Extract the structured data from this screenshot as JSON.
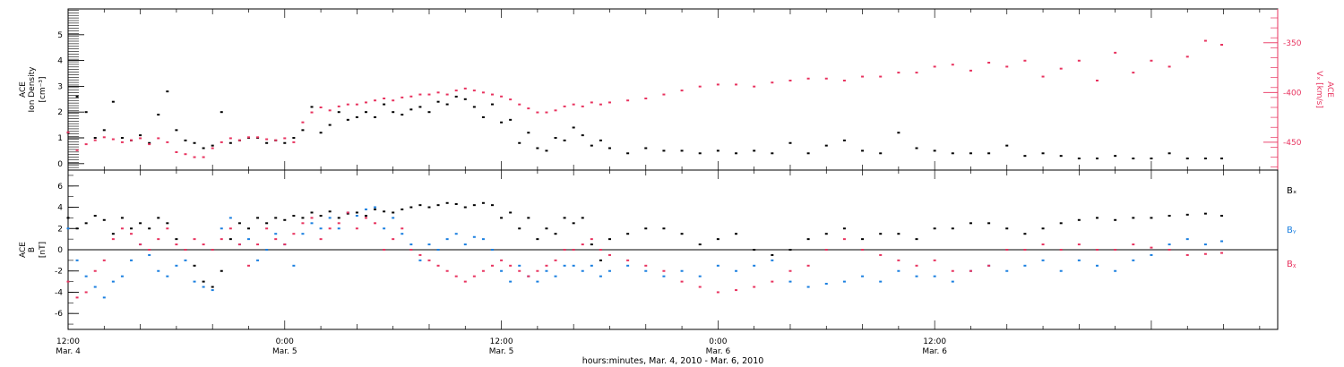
{
  "x_axis": {
    "ticks": [
      {
        "time": "12:00",
        "date": "Mar. 4"
      },
      {
        "time": "0:00",
        "date": "Mar. 5"
      },
      {
        "time": "12:00",
        "date": "Mar. 5"
      },
      {
        "time": "0:00",
        "date": "Mar. 6"
      },
      {
        "time": "12:00",
        "date": "Mar. 6"
      }
    ],
    "title": "hours:minutes, Mar.  4, 2010 - Mar.  6, 2010"
  },
  "colors": {
    "density": "#000000",
    "velocity": "#e8335f",
    "bx": "#000000",
    "by": "#1a7fe0",
    "bz": "#e8335f",
    "axes": "#000000"
  },
  "chart_data": [
    {
      "type": "scatter",
      "panel": "top",
      "x_unit": "hours since Mar. 4 12:00",
      "xlim": [
        0,
        67
      ],
      "left_axis": {
        "label_lines": [
          "ACE",
          "Ion Density"
        ],
        "unit": "[cm⁻³]",
        "ylim": [
          -0.25,
          6.0
        ],
        "ticks": [
          0,
          1,
          2,
          3,
          4,
          5
        ]
      },
      "right_axis": {
        "label_lines": [
          "ACE"
        ],
        "unit": "Vₓ [km/s]",
        "ylim": [
          -478,
          -316
        ],
        "ticks": [
          -350,
          -400,
          -450
        ]
      },
      "series": [
        {
          "name": "",
          "axis": "left",
          "color_key": "density",
          "x": [
            0,
            0.5,
            1,
            1.5,
            2,
            2.5,
            3,
            3.5,
            4,
            4.5,
            5,
            5.5,
            6,
            6.5,
            7,
            7.5,
            8,
            8.5,
            9,
            9.5,
            10,
            10.5,
            11,
            11.5,
            12,
            12.5,
            13,
            13.5,
            14,
            14.5,
            15,
            15.5,
            16,
            16.5,
            17,
            17.5,
            18,
            18.5,
            19,
            19.5,
            20,
            20.5,
            21,
            21.5,
            22,
            22.5,
            23,
            23.5,
            24,
            24.5,
            25,
            25.5,
            26,
            26.5,
            27,
            27.5,
            28,
            28.5,
            29,
            29.5,
            30,
            31,
            32,
            33,
            34,
            35,
            36,
            37,
            38,
            39,
            40,
            41,
            42,
            43,
            44,
            45,
            46,
            47,
            48,
            49,
            50,
            51,
            52,
            53,
            54,
            55,
            56,
            57,
            58,
            59,
            60,
            61,
            62,
            63,
            63.9
          ],
          "y": [
            1.2,
            2.6,
            2.0,
            1.0,
            1.3,
            2.4,
            1.0,
            0.9,
            1.1,
            0.8,
            1.9,
            2.8,
            1.3,
            0.9,
            0.8,
            0.6,
            0.7,
            2.0,
            0.8,
            0.9,
            1.0,
            1.0,
            0.8,
            0.9,
            0.8,
            1.0,
            1.3,
            2.2,
            1.2,
            1.5,
            2.0,
            1.7,
            1.8,
            2.0,
            1.8,
            2.3,
            2.0,
            1.9,
            2.1,
            2.2,
            2.0,
            2.4,
            2.3,
            2.6,
            2.5,
            2.2,
            1.8,
            2.3,
            1.6,
            1.7,
            0.8,
            1.2,
            0.6,
            0.5,
            1.0,
            0.9,
            1.4,
            1.1,
            0.7,
            0.9,
            0.6,
            0.4,
            0.6,
            0.5,
            0.5,
            0.4,
            0.5,
            0.4,
            0.5,
            0.4,
            0.8,
            0.4,
            0.7,
            0.9,
            0.5,
            0.4,
            1.2,
            0.6,
            0.5,
            0.4,
            0.4,
            0.4,
            0.7,
            0.3,
            0.4,
            0.3,
            0.2,
            0.2,
            0.3,
            0.2,
            0.2,
            0.4,
            0.2,
            0.2,
            0.2
          ]
        },
        {
          "name": "",
          "axis": "right",
          "color_key": "velocity",
          "x": [
            0,
            0.5,
            1,
            1.5,
            2,
            2.5,
            3,
            3.5,
            4,
            4.5,
            5,
            5.5,
            6,
            6.5,
            7,
            7.5,
            8,
            8.5,
            9,
            9.5,
            10,
            10.5,
            11,
            11.5,
            12,
            12.5,
            13,
            13.5,
            14,
            14.5,
            15,
            15.5,
            16,
            16.5,
            17,
            17.5,
            18,
            18.5,
            19,
            19.5,
            20,
            20.5,
            21,
            21.5,
            22,
            22.5,
            23,
            23.5,
            24,
            24.5,
            25,
            25.5,
            26,
            26.5,
            27,
            27.5,
            28,
            28.5,
            29,
            29.5,
            30,
            31,
            32,
            33,
            34,
            35,
            36,
            37,
            38,
            39,
            40,
            41,
            42,
            43,
            44,
            45,
            46,
            47,
            48,
            49,
            50,
            51,
            52,
            53,
            54,
            55,
            56,
            57,
            58,
            59,
            60,
            61,
            62,
            63,
            63.9
          ],
          "y": [
            -440,
            -458,
            -452,
            -448,
            -445,
            -447,
            -450,
            -448,
            -446,
            -452,
            -446,
            -450,
            -460,
            -462,
            -465,
            -465,
            -456,
            -450,
            -446,
            -448,
            -445,
            -445,
            -447,
            -448,
            -446,
            -450,
            -430,
            -420,
            -415,
            -418,
            -414,
            -412,
            -412,
            -410,
            -408,
            -406,
            -408,
            -405,
            -404,
            -402,
            -402,
            -400,
            -402,
            -398,
            -396,
            -398,
            -400,
            -402,
            -404,
            -407,
            -412,
            -416,
            -420,
            -420,
            -418,
            -414,
            -412,
            -414,
            -410,
            -412,
            -410,
            -408,
            -406,
            -402,
            -398,
            -394,
            -392,
            -392,
            -394,
            -390,
            -388,
            -386,
            -386,
            -388,
            -384,
            -384,
            -380,
            -380,
            -374,
            -372,
            -378,
            -370,
            -374,
            -368,
            -384,
            -376,
            -368,
            -388,
            -360,
            -380,
            -368,
            -374,
            -364,
            -348,
            -352
          ]
        }
      ]
    },
    {
      "type": "scatter",
      "panel": "bottom",
      "x_unit": "hours since Mar. 4 12:00",
      "xlim": [
        0,
        67
      ],
      "left_axis": {
        "label_lines": [
          "ACE",
          "B"
        ],
        "unit": "[nT]",
        "ylim": [
          -7.5,
          7.5
        ],
        "ticks": [
          -6,
          -4,
          -2,
          0,
          2,
          4,
          6
        ]
      },
      "legend": [
        "Bₓ",
        "Bᵧ",
        "Bᵪ"
      ],
      "series": [
        {
          "name": "Bₓ",
          "color_key": "bx",
          "x": [
            0,
            0.5,
            1,
            1.5,
            2,
            2.5,
            3,
            3.5,
            4,
            4.5,
            5,
            5.5,
            6,
            6.5,
            7,
            7.5,
            8,
            8.5,
            9,
            9.5,
            10,
            10.5,
            11,
            11.5,
            12,
            12.5,
            13,
            13.5,
            14,
            14.5,
            15,
            15.5,
            16,
            16.5,
            17,
            17.5,
            18,
            18.5,
            19,
            19.5,
            20,
            20.5,
            21,
            21.5,
            22,
            22.5,
            23,
            23.5,
            24,
            24.5,
            25,
            25.5,
            26,
            26.5,
            27,
            27.5,
            28,
            28.5,
            29,
            29.5,
            30,
            31,
            32,
            33,
            34,
            35,
            36,
            37,
            38,
            39,
            40,
            41,
            42,
            43,
            44,
            45,
            46,
            47,
            48,
            49,
            50,
            51,
            52,
            53,
            54,
            55,
            56,
            57,
            58,
            59,
            60,
            61,
            62,
            63,
            63.9
          ],
          "y": [
            3.0,
            2.0,
            2.5,
            3.2,
            2.8,
            1.5,
            3.0,
            2.0,
            2.5,
            2.0,
            3.0,
            2.5,
            1.0,
            0.0,
            -1.5,
            -3.0,
            -3.5,
            -2.0,
            1.0,
            2.5,
            2.0,
            3.0,
            2.5,
            3.0,
            2.8,
            3.2,
            3.0,
            3.5,
            3.2,
            3.6,
            3.0,
            3.4,
            3.5,
            3.2,
            3.8,
            3.6,
            3.5,
            3.8,
            4.0,
            4.2,
            4.0,
            4.2,
            4.4,
            4.3,
            4.0,
            4.2,
            4.4,
            4.2,
            3.0,
            3.5,
            2.0,
            3.0,
            1.0,
            2.0,
            1.5,
            3.0,
            2.5,
            3.0,
            0.5,
            -1.0,
            1.0,
            1.5,
            2.0,
            2.0,
            1.5,
            0.5,
            1.0,
            1.5,
            0.0,
            -0.5,
            0.0,
            1.0,
            1.5,
            2.0,
            1.0,
            1.5,
            1.5,
            1.0,
            2.0,
            2.0,
            2.5,
            2.5,
            2.0,
            1.5,
            2.0,
            2.5,
            2.8,
            3.0,
            2.8,
            3.0,
            3.0,
            3.2,
            3.3,
            3.4,
            3.2
          ]
        },
        {
          "name": "Bᵧ",
          "color_key": "by",
          "x": [
            0,
            0.5,
            1,
            1.5,
            2,
            2.5,
            3,
            3.5,
            4,
            4.5,
            5,
            5.5,
            6,
            6.5,
            7,
            7.5,
            8,
            8.5,
            9,
            9.5,
            10,
            10.5,
            11,
            11.5,
            12,
            12.5,
            13,
            13.5,
            14,
            14.5,
            15,
            15.5,
            16,
            16.5,
            17,
            17.5,
            18,
            18.5,
            19,
            19.5,
            20,
            20.5,
            21,
            21.5,
            22,
            22.5,
            23,
            23.5,
            24,
            24.5,
            25,
            25.5,
            26,
            26.5,
            27,
            27.5,
            28,
            28.5,
            29,
            29.5,
            30,
            31,
            32,
            33,
            34,
            35,
            36,
            37,
            38,
            39,
            40,
            41,
            42,
            43,
            44,
            45,
            46,
            47,
            48,
            49,
            50,
            51,
            52,
            53,
            54,
            55,
            56,
            57,
            58,
            59,
            60,
            61,
            62,
            63,
            63.9
          ],
          "y": [
            2.0,
            -1.0,
            -2.5,
            -3.5,
            -4.5,
            -3.0,
            -2.5,
            -1.0,
            0.5,
            -0.5,
            -2.0,
            -2.5,
            -1.5,
            -1.0,
            -3.0,
            -3.5,
            -3.8,
            2.0,
            3.0,
            0.5,
            1.0,
            -1.0,
            0.0,
            1.5,
            0.5,
            -1.5,
            1.5,
            2.5,
            2.0,
            3.0,
            2.0,
            3.5,
            3.2,
            3.8,
            4.0,
            2.0,
            3.0,
            1.5,
            0.5,
            -1.0,
            0.5,
            0.0,
            1.0,
            1.5,
            0.5,
            1.2,
            1.0,
            0.0,
            -2.0,
            -3.0,
            -1.5,
            -2.5,
            -3.0,
            -2.0,
            -2.5,
            -1.5,
            -1.5,
            -2.0,
            -1.5,
            -2.5,
            -2.0,
            -1.5,
            -2.0,
            -2.5,
            -2.0,
            -2.5,
            -1.5,
            -2.0,
            -1.5,
            -1.0,
            -3.0,
            -3.5,
            -3.2,
            -3.0,
            -2.5,
            -3.0,
            -2.0,
            -2.5,
            -2.5,
            -3.0,
            -2.0,
            -1.5,
            -2.0,
            -1.5,
            -1.0,
            -2.0,
            -1.0,
            -1.5,
            -2.0,
            -1.0,
            -0.5,
            0.5,
            1.0,
            0.5,
            0.8
          ]
        },
        {
          "name": "Bᵪ",
          "color_key": "bz",
          "x": [
            0,
            0.5,
            1,
            1.5,
            2,
            2.5,
            3,
            3.5,
            4,
            4.5,
            5,
            5.5,
            6,
            6.5,
            7,
            7.5,
            8,
            8.5,
            9,
            9.5,
            10,
            10.5,
            11,
            11.5,
            12,
            12.5,
            13,
            13.5,
            14,
            14.5,
            15,
            15.5,
            16,
            16.5,
            17,
            17.5,
            18,
            18.5,
            19,
            19.5,
            20,
            20.5,
            21,
            21.5,
            22,
            22.5,
            23,
            23.5,
            24,
            24.5,
            25,
            25.5,
            26,
            26.5,
            27,
            27.5,
            28,
            28.5,
            29,
            29.5,
            30,
            31,
            32,
            33,
            34,
            35,
            36,
            37,
            38,
            39,
            40,
            41,
            42,
            43,
            44,
            45,
            46,
            47,
            48,
            49,
            50,
            51,
            52,
            53,
            54,
            55,
            56,
            57,
            58,
            59,
            60,
            61,
            62,
            63,
            63.9
          ],
          "y": [
            -3.0,
            -4.5,
            -4.0,
            -2.0,
            -1.0,
            1.0,
            2.0,
            1.5,
            0.5,
            0.0,
            1.0,
            2.0,
            0.5,
            0.0,
            1.0,
            0.5,
            0.0,
            1.0,
            2.0,
            0.5,
            -1.5,
            0.5,
            2.0,
            1.0,
            0.5,
            1.5,
            2.5,
            3.0,
            1.0,
            2.0,
            2.5,
            3.5,
            2.0,
            3.0,
            2.5,
            0.0,
            1.0,
            2.0,
            0.0,
            -0.5,
            -1.0,
            -1.5,
            -2.0,
            -2.5,
            -3.0,
            -2.5,
            -2.0,
            -1.5,
            -1.0,
            -1.5,
            -2.0,
            -2.5,
            -2.0,
            -1.5,
            -1.0,
            0.0,
            0.0,
            0.5,
            1.0,
            0.0,
            -0.5,
            -1.0,
            -1.5,
            -2.0,
            -3.0,
            -3.5,
            -4.0,
            -3.8,
            -3.5,
            -3.0,
            -2.0,
            -1.5,
            0.0,
            1.0,
            0.0,
            -0.5,
            -1.0,
            -1.5,
            -1.0,
            -2.0,
            -2.0,
            -1.5,
            0.0,
            0.0,
            0.5,
            0.0,
            0.5,
            0.0,
            0.0,
            0.5,
            0.2,
            0.0,
            -0.5,
            -0.4,
            -0.3
          ]
        }
      ]
    }
  ]
}
